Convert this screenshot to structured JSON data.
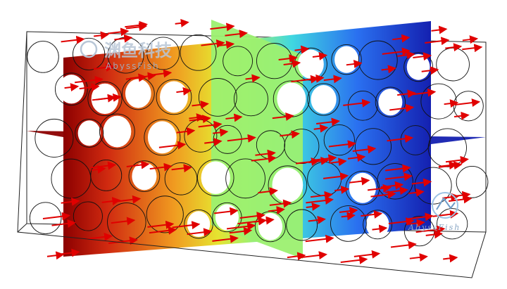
{
  "watermark": {
    "title": "渊鱼科技",
    "brand": "AbyssFish"
  },
  "logo": {
    "label": "AbyssFish"
  }
}
